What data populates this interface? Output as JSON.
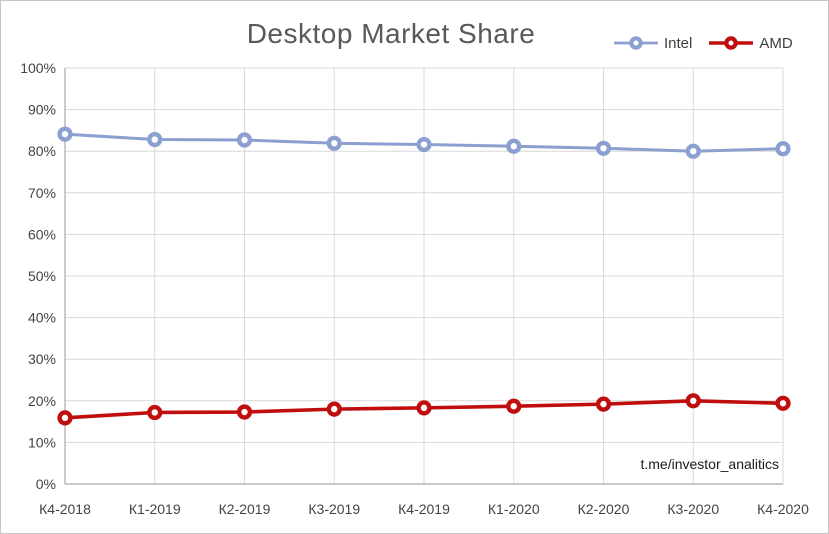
{
  "chart_data": {
    "type": "line",
    "title": "Desktop Market Share",
    "categories": [
      "К4-2018",
      "К1-2019",
      "К2-2019",
      "К3-2019",
      "К4-2019",
      "К1-2020",
      "К2-2020",
      "К3-2020",
      "К4-2020"
    ],
    "series": [
      {
        "name": "Intel",
        "color": "#8B9FD1",
        "line_width": 3,
        "marker": "donut-circle",
        "values": [
          84.1,
          82.8,
          82.7,
          81.9,
          81.6,
          81.2,
          80.7,
          80.0,
          80.6
        ]
      },
      {
        "name": "AMD",
        "color": "#C00E0E",
        "line_width": 3.6,
        "marker": "donut-circle",
        "values": [
          15.9,
          17.2,
          17.3,
          18.0,
          18.3,
          18.7,
          19.2,
          20.0,
          19.4
        ]
      }
    ],
    "xlabel": "",
    "ylabel": "",
    "ylim": [
      0,
      100
    ],
    "ytick_values": [
      0,
      10,
      20,
      30,
      40,
      50,
      60,
      70,
      80,
      90,
      100
    ],
    "ytick_labels": [
      "0%",
      "10%",
      "20%",
      "30%",
      "40%",
      "50%",
      "60%",
      "70%",
      "80%",
      "90%",
      "100%"
    ],
    "grid": true,
    "legend_position": "top-right",
    "annotations": [
      {
        "text": "t.me/investor_analitics",
        "position": "inside-bottom-right"
      }
    ]
  },
  "styles": {
    "background": "#ffffff",
    "frame_border_color": "#c6c6c6",
    "grid_color": "#d9d9d9",
    "axis_color": "#a9a9a9",
    "tick_label_color": "#444444",
    "title_color": "#595959",
    "legend_text_color": "#3f3f3f",
    "watermark_color": "#1a1a1a"
  }
}
